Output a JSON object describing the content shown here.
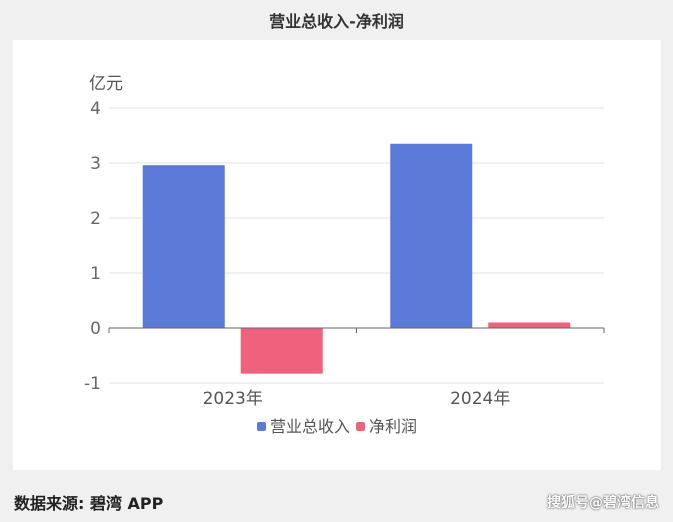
{
  "chart_data": {
    "type": "bar",
    "title": "营业总收入-净利润",
    "ylabel": "亿元",
    "categories": [
      "2023年",
      "2024年"
    ],
    "series": [
      {
        "name": "营业总收入",
        "values": [
          2.96,
          3.35
        ],
        "color": "#5b79d6"
      },
      {
        "name": "净利润",
        "values": [
          -0.83,
          0.1
        ],
        "color": "#f0617e"
      }
    ],
    "ylim": [
      -1,
      4
    ],
    "yticks": [
      "-1",
      "0",
      "1",
      "2",
      "3",
      "4"
    ],
    "grid": true,
    "legend": "bottom"
  },
  "footer": {
    "source": "数据来源: 碧湾 APP",
    "brand": "搜狐号@碧湾信息"
  }
}
